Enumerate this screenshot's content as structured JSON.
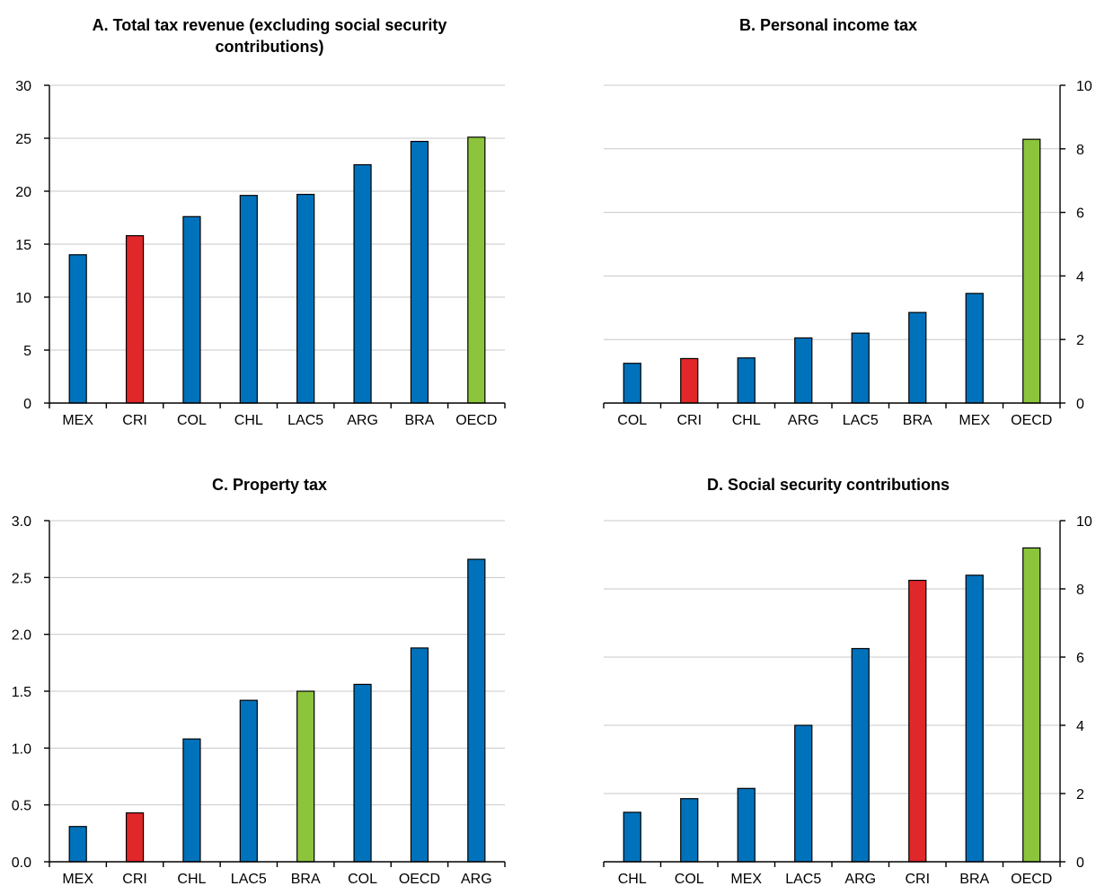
{
  "colors": {
    "default": "#0072bb",
    "highlight": "#e0272a",
    "oecd": "#8cc43c"
  },
  "chart_data": [
    {
      "type": "bar",
      "title": [
        "A. Total tax revenue (excluding social security",
        "contributions)"
      ],
      "categories": [
        "MEX",
        "CRI",
        "COL",
        "CHL",
        "LAC5",
        "ARG",
        "BRA",
        "OECD"
      ],
      "values": [
        14.0,
        15.8,
        17.6,
        19.6,
        19.7,
        22.5,
        24.7,
        25.1
      ],
      "highlight": [
        "CRI"
      ],
      "reference": [
        "OECD"
      ],
      "ylim": [
        0,
        30
      ],
      "yticks": [
        "0",
        "5",
        "10",
        "15",
        "20",
        "25",
        "30"
      ],
      "yaxis_side": "left",
      "grid": true
    },
    {
      "type": "bar",
      "title": [
        "B. Personal income tax"
      ],
      "categories": [
        "COL",
        "CRI",
        "CHL",
        "ARG",
        "LAC5",
        "BRA",
        "MEX",
        "OECD"
      ],
      "values": [
        1.25,
        1.4,
        1.42,
        2.05,
        2.2,
        2.85,
        3.45,
        8.3
      ],
      "highlight": [
        "CRI"
      ],
      "reference": [
        "OECD"
      ],
      "ylim": [
        0,
        10
      ],
      "yticks": [
        "0",
        "2",
        "4",
        "6",
        "8",
        "10"
      ],
      "yaxis_side": "right",
      "grid": true
    },
    {
      "type": "bar",
      "title": [
        "C. Property tax"
      ],
      "categories": [
        "MEX",
        "CRI",
        "CHL",
        "LAC5",
        "BRA",
        "COL",
        "OECD",
        "ARG"
      ],
      "values": [
        0.31,
        0.43,
        1.08,
        1.42,
        1.5,
        1.56,
        1.88,
        2.66
      ],
      "highlight": [
        "CRI"
      ],
      "reference": [
        "BRA"
      ],
      "ylim": [
        0,
        3
      ],
      "yticks": [
        "0.0",
        "0.5",
        "1.0",
        "1.5",
        "2.0",
        "2.5",
        "3.0"
      ],
      "yaxis_side": "left",
      "grid": true
    },
    {
      "type": "bar",
      "title": [
        "D. Social security contributions"
      ],
      "categories": [
        "CHL",
        "COL",
        "MEX",
        "LAC5",
        "ARG",
        "CRI",
        "BRA",
        "OECD"
      ],
      "values": [
        1.45,
        1.85,
        2.15,
        4.0,
        6.25,
        8.25,
        8.4,
        9.2
      ],
      "highlight": [
        "CRI"
      ],
      "reference": [
        "OECD"
      ],
      "ylim": [
        0,
        10
      ],
      "yticks": [
        "0",
        "2",
        "4",
        "6",
        "8",
        "10"
      ],
      "yaxis_side": "right",
      "grid": true
    }
  ]
}
